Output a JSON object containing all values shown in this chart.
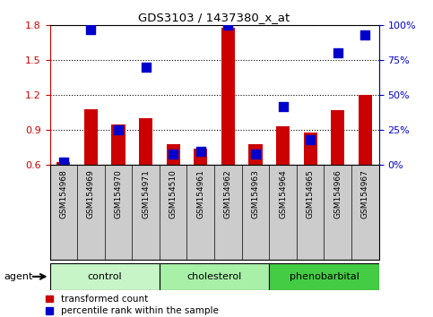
{
  "title": "GDS3103 / 1437380_x_at",
  "samples": [
    "GSM154968",
    "GSM154969",
    "GSM154970",
    "GSM154971",
    "GSM154510",
    "GSM154961",
    "GSM154962",
    "GSM154963",
    "GSM154964",
    "GSM154965",
    "GSM154966",
    "GSM154967"
  ],
  "red_values": [
    0.62,
    1.08,
    0.95,
    1.0,
    0.78,
    0.74,
    1.78,
    0.78,
    0.93,
    0.88,
    1.07,
    1.2
  ],
  "blue_pct": [
    2,
    97,
    25,
    70,
    8,
    10,
    100,
    8,
    42,
    18,
    80,
    93
  ],
  "groups": [
    {
      "label": "control",
      "start": 0,
      "end": 3,
      "color": "#c8f5c8"
    },
    {
      "label": "cholesterol",
      "start": 4,
      "end": 7,
      "color": "#a8f0a8"
    },
    {
      "label": "phenobarbital",
      "start": 8,
      "end": 11,
      "color": "#44cc44"
    }
  ],
  "ylim_left": [
    0.6,
    1.8
  ],
  "ylim_right": [
    0,
    100
  ],
  "yticks_left": [
    0.6,
    0.9,
    1.2,
    1.5,
    1.8
  ],
  "ytick_labels_left": [
    "0.6",
    "0.9",
    "1.2",
    "1.5",
    "1.8"
  ],
  "yticks_right": [
    0,
    25,
    50,
    75,
    100
  ],
  "ytick_labels_right": [
    "0%",
    "25%",
    "50%",
    "75%",
    "100%"
  ],
  "bar_color": "#cc0000",
  "dot_color": "#0000cc",
  "tick_bg_color": "#cccccc",
  "bar_width": 0.5,
  "dot_size": 45,
  "agent_label": "agent",
  "legend_red": "transformed count",
  "legend_blue": "percentile rank within the sample"
}
